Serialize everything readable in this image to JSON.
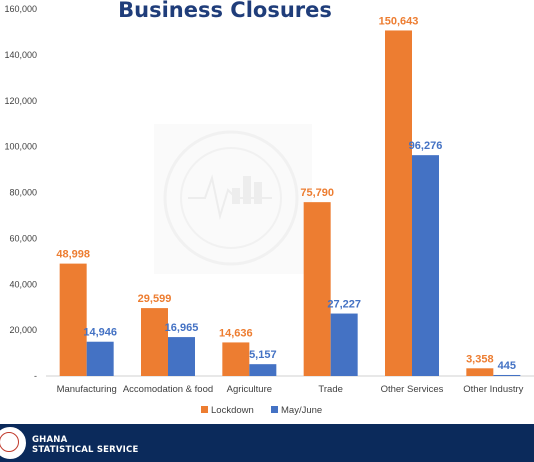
{
  "chart_data": {
    "type": "bar",
    "title": "Business Closures",
    "categories": [
      "Manufacturing",
      "Accomodation & food",
      "Agriculture",
      "Trade",
      "Other Services",
      "Other Industry"
    ],
    "series": [
      {
        "name": "Lockdown",
        "values": [
          48998,
          29599,
          14636,
          75790,
          150643,
          3358
        ],
        "labels": [
          "48,998",
          "29,599",
          "14,636",
          "75,790",
          "150,643",
          "3,358"
        ]
      },
      {
        "name": "May/June",
        "values": [
          14946,
          16965,
          5157,
          27227,
          96276,
          445
        ],
        "labels": [
          "14,946",
          "16,965",
          "5,157",
          "27,227",
          "96,276",
          "445"
        ]
      }
    ],
    "yticks": [
      0,
      20000,
      40000,
      60000,
      80000,
      100000,
      120000,
      140000,
      160000
    ],
    "ytick_labels": [
      "-",
      "20,000",
      "40,000",
      "60,000",
      "80,000",
      "100,000",
      "120,000",
      "140,000",
      "160,000"
    ],
    "ylim": [
      0,
      160000
    ],
    "grid": false,
    "legend_position": "bottom",
    "colors": {
      "Lockdown": "#ed7d31",
      "May/June": "#4472c4"
    }
  },
  "footer": {
    "line1": "GHANA",
    "line2": "STATISTICAL SERVICE"
  },
  "logo_icon": "ghana-statistical-service-seal-icon"
}
